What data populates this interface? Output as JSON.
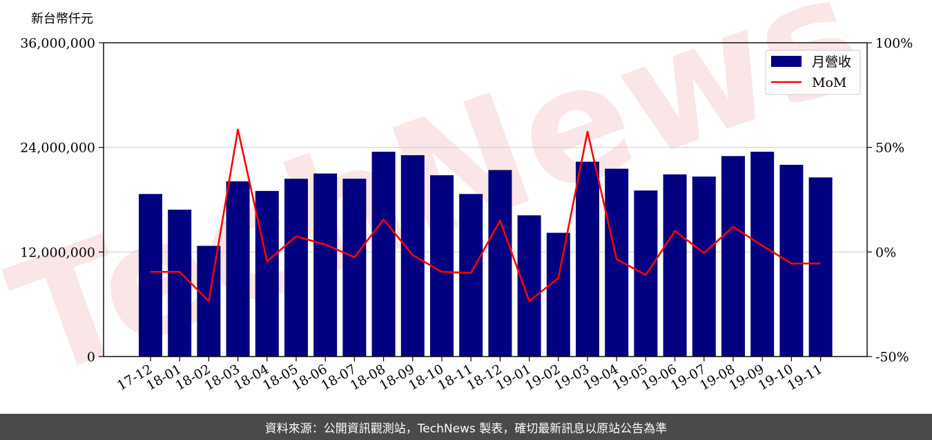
{
  "chart_data": {
    "type": "bar",
    "unit_label": "新台幣仟元",
    "categories": [
      "17-12",
      "18-01",
      "18-02",
      "18-03",
      "18-04",
      "18-05",
      "18-06",
      "18-07",
      "18-08",
      "18-09",
      "18-10",
      "18-11",
      "18-12",
      "19-01",
      "19-02",
      "19-03",
      "19-04",
      "19-05",
      "19-06",
      "19-07",
      "19-08",
      "19-09",
      "19-10",
      "19-11"
    ],
    "series": [
      {
        "name": "月營收",
        "axis": "left",
        "type": "bar",
        "color": "#000080",
        "values": [
          18650000,
          16850000,
          12700000,
          20100000,
          19000000,
          20400000,
          21000000,
          20400000,
          23500000,
          23100000,
          20800000,
          18650000,
          21400000,
          16200000,
          14200000,
          22350000,
          21550000,
          19050000,
          20900000,
          20650000,
          23000000,
          23500000,
          22000000,
          20550000
        ]
      },
      {
        "name": "MoM",
        "axis": "right",
        "type": "line",
        "color": "#ff0000",
        "values": [
          -9.5,
          -9.5,
          -23.5,
          58.5,
          -4.5,
          7.5,
          3.5,
          -2.5,
          15.5,
          -1.5,
          -9.5,
          -10,
          15,
          -23.5,
          -12.5,
          57.5,
          -3.5,
          -11,
          10,
          -0.5,
          12,
          3,
          -5.5,
          -5.5
        ]
      }
    ],
    "y_left": {
      "min": 0,
      "max": 36000000,
      "ticks": [
        0,
        12000000,
        24000000,
        36000000
      ],
      "tick_labels": [
        "0",
        "12,000,000",
        "24,000,000",
        "36,000,000"
      ]
    },
    "y_right": {
      "min": -50,
      "max": 100,
      "ticks": [
        -50,
        0,
        50,
        100
      ],
      "tick_labels": [
        "-50%",
        "0%",
        "50%",
        "100%"
      ]
    },
    "grid": "horizontal",
    "legend_position": "top-right",
    "watermark": "TechNews"
  },
  "footer": {
    "text": "資料來源：公開資訊觀測站，TechNews 製表，確切最新訊息以原站公告為準"
  }
}
